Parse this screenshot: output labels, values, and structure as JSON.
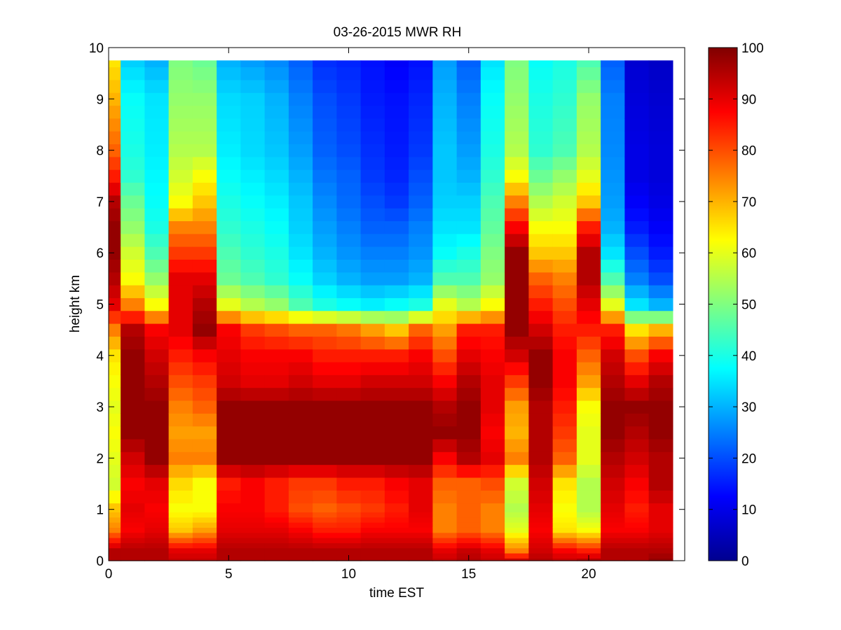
{
  "chart_data": {
    "type": "heatmap",
    "title": "03-26-2015 MWR RH",
    "xlabel": "time EST",
    "ylabel": "height km",
    "xlim": [
      0,
      24
    ],
    "ylim": [
      0,
      10
    ],
    "xticks": [
      0,
      5,
      10,
      15,
      20
    ],
    "yticks": [
      0,
      1,
      2,
      3,
      4,
      5,
      6,
      7,
      8,
      9,
      10
    ],
    "colorbar": {
      "colormap": "jet",
      "clim": [
        0,
        100
      ],
      "ticks": [
        0,
        10,
        20,
        30,
        40,
        50,
        60,
        70,
        80,
        90,
        100
      ]
    },
    "time_hours": [
      0,
      1,
      2,
      3,
      4,
      5,
      6,
      7,
      8,
      9,
      10,
      11,
      12,
      13,
      14,
      15,
      16,
      17,
      18,
      19,
      20,
      21,
      22,
      23
    ],
    "height_levels_km": [
      0.0,
      0.1,
      0.2,
      0.3,
      0.4,
      0.5,
      0.6,
      0.7,
      0.8,
      0.9,
      1.0,
      1.25,
      1.5,
      1.75,
      2.0,
      2.25,
      2.5,
      2.75,
      3.0,
      3.25,
      3.5,
      3.75,
      4.0,
      4.25,
      4.5,
      4.75,
      5.0,
      5.25,
      5.5,
      5.75,
      6.0,
      6.25,
      6.5,
      6.75,
      7.0,
      7.25,
      7.5,
      7.75,
      8.0,
      8.25,
      8.5,
      8.75,
      9.0,
      9.25,
      9.5,
      9.75
    ],
    "profile_key_heights_km": [
      0.0,
      0.2,
      0.6,
      1.0,
      1.5,
      2.0,
      2.5,
      3.0,
      3.5,
      4.0,
      4.5,
      5.0,
      5.5,
      6.0,
      6.5,
      7.0,
      7.5,
      8.0,
      9.0,
      9.75
    ],
    "profiles_rh_percent": [
      [
        95,
        95,
        75,
        68,
        58,
        60,
        62,
        60,
        62,
        65,
        75,
        90,
        95,
        98,
        98,
        95,
        85,
        78,
        70,
        65
      ],
      [
        95,
        95,
        88,
        90,
        88,
        92,
        98,
        98,
        98,
        98,
        95,
        75,
        62,
        58,
        52,
        48,
        42,
        40,
        38,
        33
      ],
      [
        95,
        95,
        90,
        88,
        90,
        98,
        98,
        98,
        95,
        92,
        88,
        62,
        52,
        45,
        40,
        38,
        37,
        36,
        35,
        30
      ],
      [
        93,
        90,
        68,
        62,
        66,
        75,
        72,
        75,
        80,
        85,
        90,
        90,
        90,
        82,
        75,
        62,
        58,
        55,
        52,
        50
      ],
      [
        93,
        90,
        72,
        62,
        62,
        75,
        72,
        78,
        82,
        88,
        98,
        95,
        90,
        82,
        75,
        68,
        62,
        55,
        52,
        48
      ],
      [
        95,
        95,
        90,
        88,
        85,
        98,
        98,
        98,
        92,
        90,
        88,
        60,
        48,
        45,
        42,
        40,
        38,
        36,
        34,
        30
      ],
      [
        95,
        95,
        90,
        88,
        88,
        98,
        98,
        98,
        90,
        88,
        82,
        55,
        45,
        42,
        40,
        38,
        36,
        34,
        33,
        28
      ],
      [
        95,
        95,
        90,
        85,
        85,
        98,
        98,
        98,
        90,
        88,
        80,
        52,
        42,
        40,
        38,
        36,
        34,
        32,
        30,
        26
      ],
      [
        95,
        95,
        88,
        80,
        82,
        98,
        98,
        98,
        92,
        88,
        78,
        45,
        38,
        35,
        33,
        32,
        30,
        28,
        25,
        22
      ],
      [
        95,
        95,
        85,
        78,
        82,
        98,
        98,
        98,
        90,
        85,
        78,
        40,
        33,
        30,
        28,
        26,
        24,
        22,
        20,
        17
      ],
      [
        95,
        95,
        85,
        80,
        85,
        98,
        98,
        98,
        90,
        85,
        76,
        38,
        30,
        27,
        25,
        23,
        22,
        20,
        18,
        16
      ],
      [
        95,
        95,
        88,
        82,
        85,
        98,
        98,
        98,
        92,
        85,
        72,
        36,
        28,
        25,
        22,
        20,
        18,
        17,
        15,
        14
      ],
      [
        95,
        95,
        88,
        85,
        88,
        98,
        98,
        98,
        92,
        85,
        68,
        38,
        28,
        25,
        22,
        18,
        16,
        15,
        14,
        12
      ],
      [
        95,
        95,
        88,
        90,
        90,
        98,
        98,
        98,
        92,
        88,
        78,
        40,
        30,
        27,
        25,
        22,
        20,
        18,
        16,
        14
      ],
      [
        93,
        90,
        75,
        75,
        78,
        88,
        98,
        95,
        88,
        80,
        72,
        60,
        45,
        38,
        35,
        33,
        32,
        32,
        30,
        28
      ],
      [
        95,
        93,
        78,
        78,
        78,
        95,
        98,
        98,
        95,
        90,
        85,
        55,
        45,
        40,
        35,
        33,
        30,
        28,
        25,
        22
      ],
      [
        93,
        90,
        75,
        75,
        80,
        90,
        88,
        90,
        90,
        88,
        85,
        62,
        52,
        50,
        47,
        45,
        42,
        40,
        38,
        35
      ],
      [
        93,
        75,
        60,
        55,
        58,
        75,
        70,
        72,
        82,
        92,
        98,
        98,
        98,
        98,
        88,
        75,
        62,
        55,
        52,
        50
      ],
      [
        95,
        92,
        88,
        90,
        92,
        95,
        95,
        95,
        98,
        98,
        92,
        85,
        78,
        68,
        62,
        55,
        48,
        42,
        40,
        38
      ],
      [
        93,
        88,
        65,
        62,
        65,
        78,
        82,
        85,
        88,
        88,
        85,
        80,
        75,
        68,
        62,
        58,
        52,
        45,
        42,
        40
      ],
      [
        95,
        85,
        62,
        55,
        55,
        60,
        60,
        62,
        72,
        78,
        85,
        90,
        95,
        95,
        85,
        68,
        60,
        55,
        52,
        45
      ],
      [
        95,
        95,
        88,
        90,
        92,
        95,
        98,
        98,
        95,
        92,
        85,
        60,
        45,
        35,
        30,
        28,
        27,
        26,
        25,
        22
      ],
      [
        95,
        95,
        88,
        85,
        88,
        92,
        95,
        98,
        90,
        80,
        65,
        35,
        25,
        20,
        15,
        12,
        10,
        10,
        9,
        8
      ],
      [
        98,
        95,
        90,
        90,
        95,
        95,
        98,
        98,
        95,
        88,
        70,
        30,
        20,
        15,
        12,
        10,
        9,
        9,
        8,
        7
      ]
    ]
  }
}
